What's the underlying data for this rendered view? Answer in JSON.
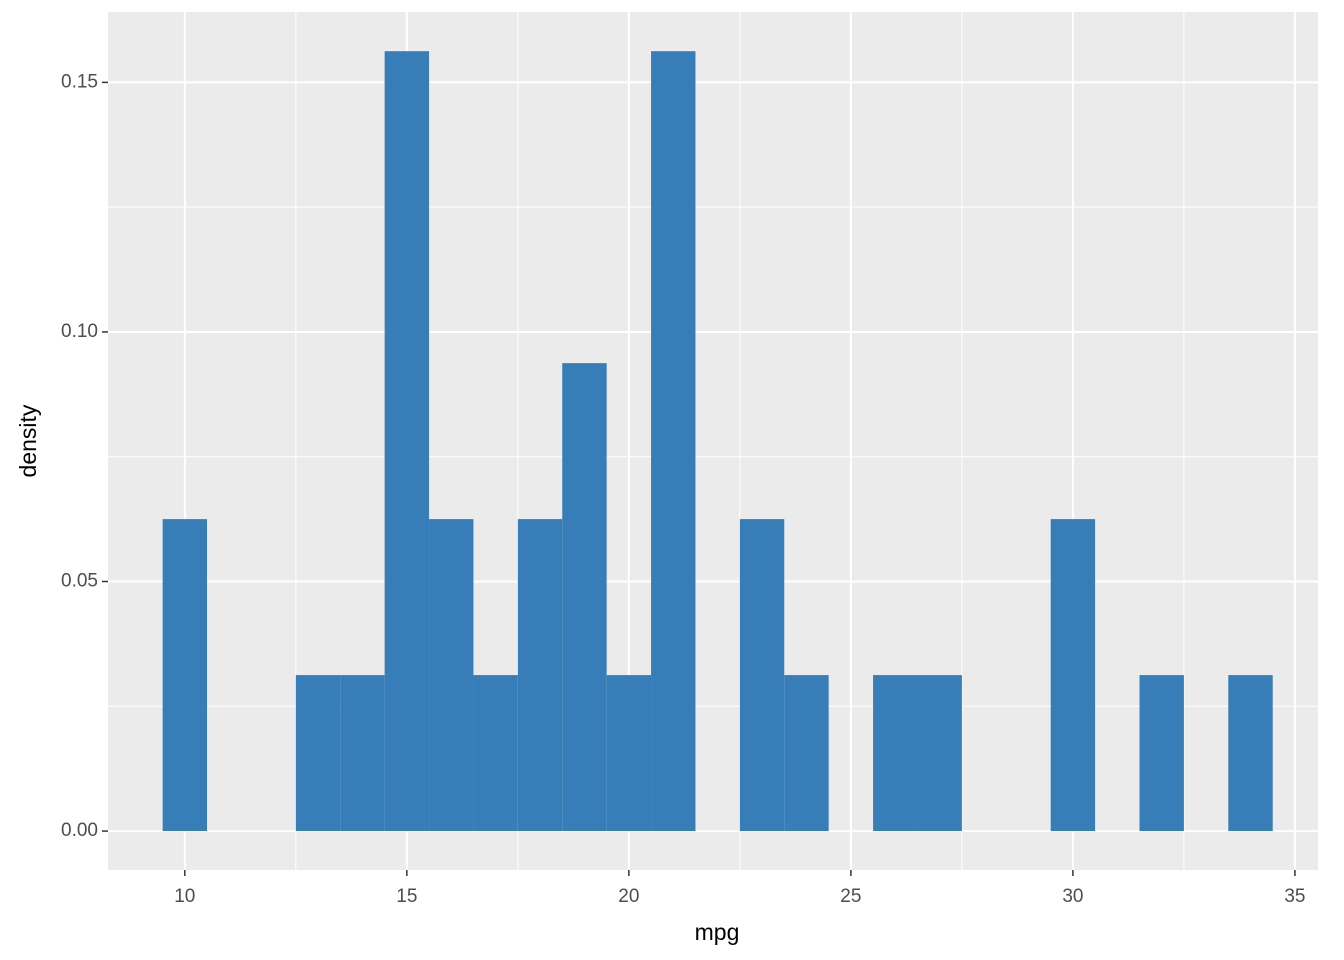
{
  "chart_data": {
    "type": "histogram",
    "x_label": "mpg",
    "y_label": "density",
    "bins": [
      9.5,
      10.5,
      11.5,
      12.5,
      13.5,
      14.5,
      15.5,
      16.5,
      17.5,
      18.5,
      19.5,
      20.5,
      21.5,
      22.5,
      23.5,
      24.5,
      25.5,
      26.5,
      27.5,
      28.5,
      29.5,
      30.5,
      31.5,
      32.5,
      33.5,
      34.5
    ],
    "values": [
      0.0625,
      0,
      0,
      0.03125,
      0.03125,
      0.15625,
      0.0625,
      0.03125,
      0.0625,
      0.09375,
      0.03125,
      0.15625,
      0,
      0.0625,
      0.03125,
      0,
      0.03125,
      0.03125,
      0,
      0,
      0.0625,
      0,
      0.03125,
      0,
      0.03125
    ],
    "color": "#377eb8",
    "xlim": [
      8.27,
      35.52
    ],
    "ylim": [
      -0.0078,
      0.1641
    ],
    "xticks": [
      10,
      15,
      20,
      25,
      30,
      35
    ],
    "x_minor_ticks": [
      12.5,
      17.5,
      22.5,
      27.5,
      32.5
    ],
    "yticks": [
      {
        "value": 0,
        "label": "0.00"
      },
      {
        "value": 0.05,
        "label": "0.05"
      },
      {
        "value": 0.1,
        "label": "0.10"
      },
      {
        "value": 0.15,
        "label": "0.15"
      }
    ],
    "y_minor_ticks": [
      0.025,
      0.075,
      0.125
    ],
    "grid": true
  }
}
